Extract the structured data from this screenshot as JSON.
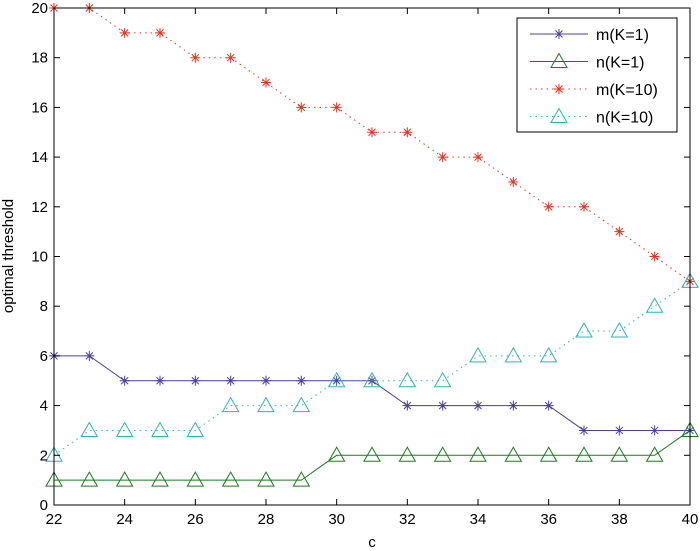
{
  "chart_data": {
    "type": "line",
    "title": "",
    "xlabel": "c",
    "ylabel": "optimal threshold",
    "xlim": [
      22,
      40
    ],
    "ylim": [
      0,
      20
    ],
    "xticks": [
      22,
      24,
      26,
      28,
      30,
      32,
      34,
      36,
      38,
      40
    ],
    "yticks": [
      0,
      2,
      4,
      6,
      8,
      10,
      12,
      14,
      16,
      18,
      20
    ],
    "grid": false,
    "legend_position": "top-right",
    "x": [
      22,
      23,
      24,
      25,
      26,
      27,
      28,
      29,
      30,
      31,
      32,
      33,
      34,
      35,
      36,
      37,
      38,
      39,
      40
    ],
    "series": [
      {
        "name": "m(K=1)",
        "color": "#4b3fa0",
        "line": "solid",
        "marker": "star",
        "values": [
          6,
          6,
          5,
          5,
          5,
          5,
          5,
          5,
          5,
          5,
          4,
          4,
          4,
          4,
          4,
          3,
          3,
          3,
          3
        ]
      },
      {
        "name": "n(K=1)",
        "color": "#1e7a1e",
        "line": "solid",
        "marker": "triangle",
        "values": [
          1,
          1,
          1,
          1,
          1,
          1,
          1,
          1,
          2,
          2,
          2,
          2,
          2,
          2,
          2,
          2,
          2,
          2,
          3
        ]
      },
      {
        "name": "m(K=10)",
        "color": "#f03020",
        "line": "dotted",
        "marker": "star",
        "values": [
          20,
          20,
          19,
          19,
          18,
          18,
          17,
          16,
          16,
          15,
          15,
          14,
          14,
          13,
          12,
          12,
          11,
          10,
          9
        ]
      },
      {
        "name": "n(K=10)",
        "color": "#2fb5b0",
        "line": "dotted",
        "marker": "triangle",
        "values": [
          2,
          3,
          3,
          3,
          3,
          4,
          4,
          4,
          5,
          5,
          5,
          5,
          6,
          6,
          6,
          7,
          7,
          8,
          9
        ]
      }
    ]
  }
}
